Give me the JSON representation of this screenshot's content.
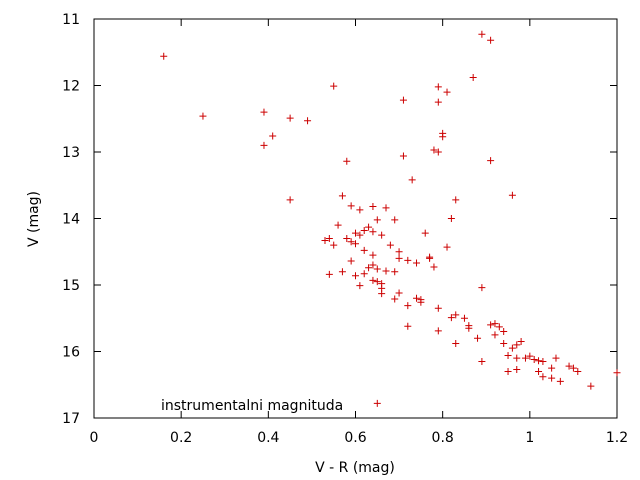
{
  "chart_data": {
    "type": "scatter",
    "title": "",
    "xlabel": "V - R  (mag)",
    "ylabel": "V  (mag)",
    "xlim": [
      0,
      1.2
    ],
    "ylim": [
      11,
      17
    ],
    "y_inverted": true,
    "grid": false,
    "x_ticks": [
      "0",
      "0.2",
      "0.4",
      "0.6",
      "0.8",
      "1",
      "1.2"
    ],
    "y_ticks": [
      "11",
      "12",
      "13",
      "14",
      "15",
      "16",
      "17"
    ],
    "annotation": "instrumentalni magnituda",
    "marker": "plus",
    "marker_color": "#cc0000",
    "series": [
      {
        "points": [
          [
            0.16,
            11.56
          ],
          [
            0.25,
            12.46
          ],
          [
            0.39,
            12.4
          ],
          [
            0.39,
            12.9
          ],
          [
            0.41,
            12.76
          ],
          [
            0.45,
            12.49
          ],
          [
            0.45,
            13.72
          ],
          [
            0.49,
            12.53
          ],
          [
            0.55,
            12.01
          ],
          [
            0.58,
            13.14
          ],
          [
            0.71,
            12.22
          ],
          [
            0.71,
            13.06
          ],
          [
            0.73,
            13.42
          ],
          [
            0.79,
            12.02
          ],
          [
            0.79,
            12.25
          ],
          [
            0.78,
            12.97
          ],
          [
            0.8,
            12.72
          ],
          [
            0.8,
            12.77
          ],
          [
            0.81,
            12.1
          ],
          [
            0.87,
            11.88
          ],
          [
            0.89,
            11.23
          ],
          [
            0.91,
            11.32
          ],
          [
            0.91,
            13.13
          ],
          [
            0.96,
            13.65
          ],
          [
            0.79,
            13.0
          ],
          [
            0.83,
            13.72
          ],
          [
            0.82,
            14.0
          ],
          [
            0.81,
            14.43
          ],
          [
            0.76,
            14.22
          ],
          [
            0.89,
            15.04
          ],
          [
            0.57,
            13.66
          ],
          [
            0.59,
            13.81
          ],
          [
            0.61,
            13.87
          ],
          [
            0.64,
            13.82
          ],
          [
            0.67,
            13.84
          ],
          [
            0.63,
            14.13
          ],
          [
            0.65,
            14.02
          ],
          [
            0.69,
            14.02
          ],
          [
            0.56,
            14.1
          ],
          [
            0.54,
            14.3
          ],
          [
            0.53,
            14.33
          ],
          [
            0.55,
            14.4
          ],
          [
            0.58,
            14.3
          ],
          [
            0.59,
            14.35
          ],
          [
            0.6,
            14.38
          ],
          [
            0.6,
            14.22
          ],
          [
            0.61,
            14.25
          ],
          [
            0.62,
            14.18
          ],
          [
            0.64,
            14.2
          ],
          [
            0.66,
            14.25
          ],
          [
            0.68,
            14.4
          ],
          [
            0.7,
            14.5
          ],
          [
            0.72,
            14.63
          ],
          [
            0.74,
            14.67
          ],
          [
            0.7,
            14.6
          ],
          [
            0.62,
            14.48
          ],
          [
            0.64,
            14.55
          ],
          [
            0.64,
            14.7
          ],
          [
            0.63,
            14.74
          ],
          [
            0.65,
            14.76
          ],
          [
            0.67,
            14.79
          ],
          [
            0.69,
            14.8
          ],
          [
            0.62,
            14.83
          ],
          [
            0.6,
            14.86
          ],
          [
            0.59,
            14.64
          ],
          [
            0.57,
            14.8
          ],
          [
            0.54,
            14.84
          ],
          [
            0.61,
            15.01
          ],
          [
            0.65,
            14.95
          ],
          [
            0.66,
            14.98
          ],
          [
            0.64,
            14.93
          ],
          [
            0.66,
            15.05
          ],
          [
            0.66,
            15.13
          ],
          [
            0.69,
            15.21
          ],
          [
            0.7,
            15.12
          ],
          [
            0.72,
            15.31
          ],
          [
            0.74,
            15.2
          ],
          [
            0.75,
            15.22
          ],
          [
            0.75,
            15.26
          ],
          [
            0.77,
            14.58
          ],
          [
            0.78,
            14.73
          ],
          [
            0.77,
            14.6
          ],
          [
            0.72,
            15.62
          ],
          [
            0.79,
            15.35
          ],
          [
            0.79,
            15.69
          ],
          [
            0.82,
            15.49
          ],
          [
            0.83,
            15.45
          ],
          [
            0.83,
            15.88
          ],
          [
            0.85,
            15.5
          ],
          [
            0.86,
            15.61
          ],
          [
            0.86,
            15.65
          ],
          [
            0.88,
            15.8
          ],
          [
            0.89,
            16.15
          ],
          [
            0.91,
            15.6
          ],
          [
            0.92,
            15.58
          ],
          [
            0.93,
            15.63
          ],
          [
            0.94,
            15.7
          ],
          [
            0.92,
            15.75
          ],
          [
            0.94,
            15.88
          ],
          [
            0.96,
            15.95
          ],
          [
            0.97,
            15.9
          ],
          [
            0.98,
            15.85
          ],
          [
            0.95,
            16.06
          ],
          [
            0.97,
            16.1
          ],
          [
            0.99,
            16.1
          ],
          [
            1.0,
            16.07
          ],
          [
            1.01,
            16.12
          ],
          [
            1.02,
            16.14
          ],
          [
            1.03,
            16.15
          ],
          [
            1.05,
            16.25
          ],
          [
            1.06,
            16.1
          ],
          [
            1.02,
            16.3
          ],
          [
            1.03,
            16.38
          ],
          [
            1.05,
            16.4
          ],
          [
            1.07,
            16.45
          ],
          [
            1.09,
            16.22
          ],
          [
            1.1,
            16.25
          ],
          [
            1.11,
            16.3
          ],
          [
            1.14,
            16.52
          ],
          [
            1.2,
            16.32
          ],
          [
            0.97,
            16.27
          ],
          [
            0.95,
            16.3
          ],
          [
            0.65,
            16.78
          ]
        ]
      }
    ]
  }
}
